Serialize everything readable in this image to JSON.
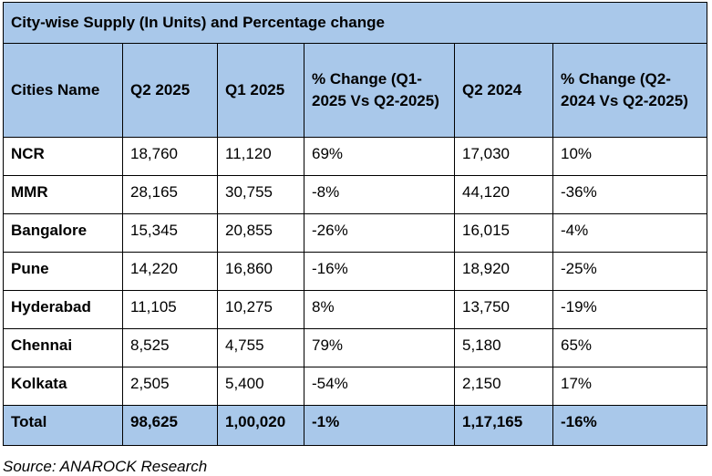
{
  "table": {
    "title": "City-wise Supply (In Units) and Percentage change",
    "headers": [
      "Cities Name",
      "Q2 2025",
      "Q1 2025",
      "% Change (Q1-2025 Vs Q2-2025)",
      "Q2 2024",
      "% Change (Q2-2024 Vs Q2-2025)"
    ],
    "rows": [
      [
        "NCR",
        "18,760",
        "11,120",
        "69%",
        "17,030",
        "10%"
      ],
      [
        "MMR",
        "28,165",
        "30,755",
        "-8%",
        "44,120",
        "-36%"
      ],
      [
        "Bangalore",
        "15,345",
        "20,855",
        "-26%",
        "16,015",
        "-4%"
      ],
      [
        "Pune",
        "14,220",
        "16,860",
        "-16%",
        "18,920",
        "-25%"
      ],
      [
        "Hyderabad",
        "11,105",
        "10,275",
        "8%",
        "13,750",
        "-19%"
      ],
      [
        "Chennai",
        "8,525",
        "4,755",
        "79%",
        "5,180",
        "65%"
      ],
      [
        "Kolkata",
        "2,505",
        "5,400",
        "-54%",
        "2,150",
        "17%"
      ]
    ],
    "total": [
      "Total",
      "98,625",
      "1,00,020",
      "-1%",
      "1,17,165",
      "-16%"
    ]
  },
  "source": "Source: ANAROCK Research",
  "colors": {
    "header_bg": "#a9c8ea",
    "border": "#000000"
  }
}
